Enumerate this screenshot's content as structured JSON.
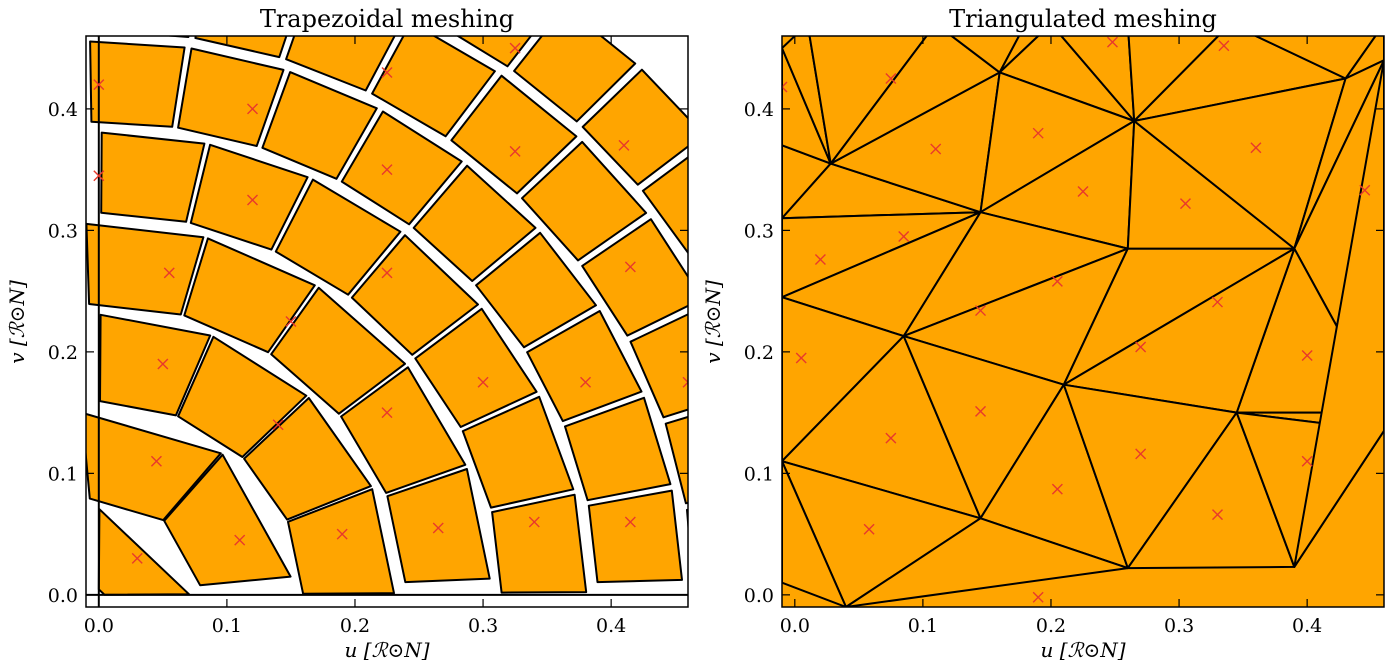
{
  "chart_data": [
    {
      "type": "scatter",
      "title": "Trapezoidal meshing",
      "xlabel": "u [ℛ⊙N]",
      "ylabel": "v [ℛ⊙N]",
      "xlim": [
        -0.01,
        0.46
      ],
      "ylim": [
        -0.01,
        0.46
      ],
      "xticks": [
        "0.0",
        "0.1",
        "0.2",
        "0.3",
        "0.4"
      ],
      "yticks": [
        "0.0",
        "0.1",
        "0.2",
        "0.3",
        "0.4"
      ],
      "mesh": "trapezoidal polar grid (rings of trapezoids)",
      "ring_radii": [
        0,
        0.075,
        0.155,
        0.235,
        0.31,
        0.385,
        0.46,
        0.535,
        0.61
      ],
      "cell_center_marker": "x",
      "centers": {
        "u": [
          0.0,
          0.0,
          0.12,
          0.225,
          0.325,
          0.12,
          0.225,
          0.055,
          0.05,
          0.15,
          0.225,
          0.3,
          0.38,
          0.415,
          0.41,
          0.325,
          0.225,
          0.14,
          0.045,
          0.03,
          0.11,
          0.19,
          0.265,
          0.34,
          0.415,
          0.46
        ],
        "v": [
          0.42,
          0.345,
          0.4,
          0.43,
          0.45,
          0.325,
          0.35,
          0.265,
          0.19,
          0.225,
          0.265,
          0.175,
          0.175,
          0.27,
          0.37,
          0.365,
          0.15,
          0.14,
          0.11,
          0.03,
          0.045,
          0.05,
          0.055,
          0.06,
          0.06,
          0.175
        ]
      },
      "colors": {
        "cell_fill": "#FFA500",
        "cell_edge": "#000000",
        "marker": "#e8392c"
      }
    },
    {
      "type": "scatter",
      "title": "Triangulated meshing",
      "xlabel": "u [ℛ⊙N]",
      "ylabel": "v [ℛ⊙N]",
      "xlim": [
        -0.01,
        0.46
      ],
      "ylim": [
        -0.01,
        0.46
      ],
      "xticks": [
        "0.0",
        "0.1",
        "0.2",
        "0.3",
        "0.4"
      ],
      "yticks": [
        "0.0",
        "0.1",
        "0.2",
        "0.3",
        "0.4"
      ],
      "mesh": "Delaunay-style triangulation",
      "vertices": {
        "u": [
          -0.01,
          -0.01,
          -0.01,
          -0.01,
          -0.01,
          0.028,
          0.145,
          0.16,
          0.265,
          0.43,
          0.46,
          0.085,
          0.26,
          0.39,
          0.21,
          0.345,
          0.46,
          0.145,
          0.26,
          0.39,
          0.04,
          0.46,
          0.46,
          0.18,
          0.11,
          0.2,
          0.01,
          -0.01,
          0.26,
          0.34
        ],
        "v": [
          0.37,
          0.31,
          0.245,
          0.11,
          0.01,
          0.355,
          0.315,
          0.43,
          0.39,
          0.425,
          0.47,
          0.213,
          0.285,
          0.285,
          0.173,
          0.15,
          0.15,
          0.063,
          0.022,
          0.023,
          -0.01,
          0.135,
          0.44,
          0.47,
          0.47,
          0.47,
          0.47,
          0.45,
          0.47,
          0.47
        ]
      },
      "cell_center_marker": "x",
      "centers": {
        "u": [
          -0.01,
          0.075,
          0.11,
          0.19,
          0.225,
          0.305,
          0.36,
          0.445,
          0.02,
          0.085,
          0.205,
          0.145,
          0.33,
          0.27,
          0.4,
          0.005,
          0.075,
          0.145,
          0.205,
          0.27,
          0.4,
          0.058,
          0.33,
          0.19,
          0.248,
          0.335
        ],
        "v": [
          0.418,
          0.425,
          0.367,
          0.38,
          0.332,
          0.322,
          0.368,
          0.333,
          0.276,
          0.295,
          0.258,
          0.234,
          0.241,
          0.204,
          0.197,
          0.195,
          0.129,
          0.151,
          0.087,
          0.116,
          0.11,
          0.054,
          0.066,
          -0.002,
          0.455,
          0.452
        ]
      },
      "colors": {
        "cell_fill": "#FFA500",
        "cell_edge": "#000000",
        "marker": "#e8392c"
      }
    }
  ]
}
